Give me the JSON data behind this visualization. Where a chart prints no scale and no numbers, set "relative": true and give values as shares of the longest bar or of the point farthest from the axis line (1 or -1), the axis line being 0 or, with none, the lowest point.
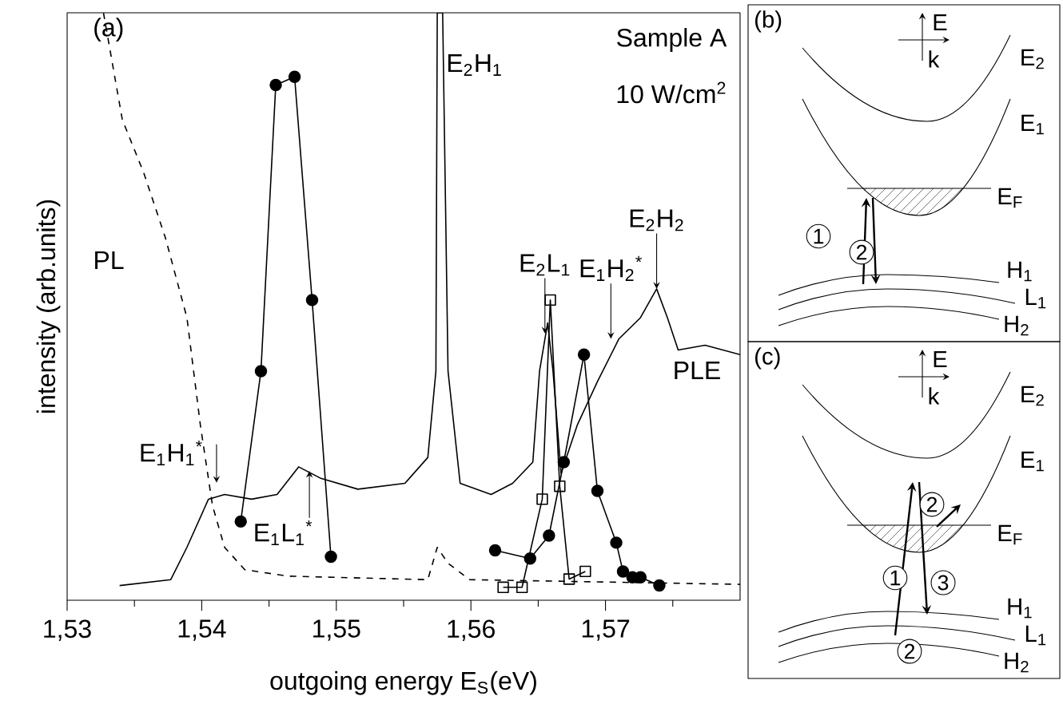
{
  "chart_data": [
    {
      "type": "line",
      "relative": true,
      "title": "(a)",
      "xlabel": "outgoing energy E$_{S}$(eV)",
      "ylabel": "intensity (arb.units)",
      "xlim": [
        1.53,
        1.58
      ],
      "xticks": [
        {
          "value": 1.53,
          "label": "1,53"
        },
        {
          "value": 1.535,
          "label": null
        },
        {
          "value": 1.54,
          "label": "1,54"
        },
        {
          "value": 1.545,
          "label": null
        },
        {
          "value": 1.55,
          "label": "1,55"
        },
        {
          "value": 1.555,
          "label": null
        },
        {
          "value": 1.56,
          "label": "1,56"
        },
        {
          "value": 1.565,
          "label": null
        },
        {
          "value": 1.57,
          "label": "1,57"
        },
        {
          "value": 1.575,
          "label": null
        }
      ],
      "series": [
        {
          "name": "PL",
          "color": "#000000",
          "line_style": "dashed",
          "marker": "none",
          "x": [
            1.5327,
            1.5341,
            1.5357,
            1.5373,
            1.5389,
            1.5399,
            1.5408,
            1.5417,
            1.5432,
            1.5464,
            1.5568,
            1.5575,
            1.5583,
            1.5599,
            1.58
          ],
          "values": [
            1.0,
            0.818,
            0.727,
            0.617,
            0.481,
            0.298,
            0.161,
            0.09,
            0.052,
            0.041,
            0.035,
            0.09,
            0.063,
            0.035,
            0.027
          ]
        },
        {
          "name": "PLE",
          "color": "#000000",
          "line_style": "solid",
          "marker": "none",
          "x": [
            1.5339,
            1.5377,
            1.5389,
            1.5405,
            1.5417,
            1.5437,
            1.5456,
            1.5472,
            1.5488,
            1.5516,
            1.5551,
            1.5568,
            1.5574,
            1.5575,
            1.5579,
            1.5583,
            1.5592,
            1.5615,
            1.5631,
            1.5646,
            1.5651,
            1.5657,
            1.5661,
            1.5667,
            1.5679,
            1.5694,
            1.571,
            1.5726,
            1.5738,
            1.5746,
            1.5754,
            1.5774,
            1.58
          ],
          "values": [
            0.025,
            0.035,
            0.09,
            0.172,
            0.18,
            0.172,
            0.18,
            0.227,
            0.208,
            0.189,
            0.199,
            0.243,
            0.39,
            1.0,
            1.0,
            0.39,
            0.199,
            0.18,
            0.199,
            0.235,
            0.39,
            0.472,
            0.39,
            0.216,
            0.298,
            0.372,
            0.445,
            0.481,
            0.53,
            0.481,
            0.426,
            0.434,
            0.418
          ]
        },
        {
          "color": "#000000",
          "line_style": "solid",
          "marker": "circle",
          "x": [
            1.5429,
            1.5444,
            1.5455,
            1.5469,
            1.5482,
            1.5496
          ],
          "values": [
            0.134,
            0.39,
            0.877,
            0.891,
            0.511,
            0.074
          ]
        },
        {
          "color": "#000000",
          "line_style": "solid",
          "marker": "circle",
          "x": [
            1.5618,
            1.5644,
            1.5658,
            1.5669,
            1.5684,
            1.5694,
            1.5708,
            1.5713,
            1.572,
            1.5726,
            1.574
          ],
          "values": [
            0.085,
            0.071,
            0.11,
            0.235,
            0.418,
            0.186,
            0.098,
            0.049,
            0.039,
            0.039,
            0.025
          ]
        },
        {
          "color": "#000000",
          "line_style": "solid",
          "marker": "square",
          "x": [
            1.5624,
            1.5638,
            1.5653,
            1.5659,
            1.5666,
            1.5673,
            1.5685
          ],
          "values": [
            0.022,
            0.022,
            0.172,
            0.511,
            0.194,
            0.036,
            0.049
          ]
        }
      ],
      "annotations": [
        "Sample A",
        "10 W/cm$^{2}$",
        {
          "text": "E$_{2}$H$_{1}$",
          "x": 1.5575,
          "y": 0.94
        },
        {
          "text": "E$_{1}$H$_{1}$$^{*}$",
          "x": 1.5411,
          "y": 0.2
        },
        {
          "text": "E$_{1}$L$_{1}$$^{*}$",
          "x": 1.548,
          "y": 0.22
        },
        {
          "text": "E$_{2}$L$_{1}$",
          "x": 1.5655,
          "y": 0.454
        },
        {
          "text": "E$_{1}$H$_{2}$$^{*}$",
          "x": 1.5704,
          "y": 0.445
        },
        {
          "text": "E$_{2}$H$_{2}$",
          "x": 1.5738,
          "y": 0.53
        }
      ]
    },
    {
      "type": "other",
      "title": "(b)",
      "annotations": [
        "E",
        "k",
        "E$_{2}$",
        "E$_{1}$",
        "E$_{F}$",
        "H$_{1}$",
        "L$_{1}$",
        "H$_{2}$",
        "1",
        "2"
      ]
    },
    {
      "type": "other",
      "title": "(c)",
      "annotations": [
        "E",
        "k",
        "E$_{2}$",
        "E$_{1}$",
        "E$_{F}$",
        "H$_{1}$",
        "L$_{1}$",
        "H$_{2}$",
        "1",
        "2",
        "3",
        "2"
      ]
    }
  ]
}
